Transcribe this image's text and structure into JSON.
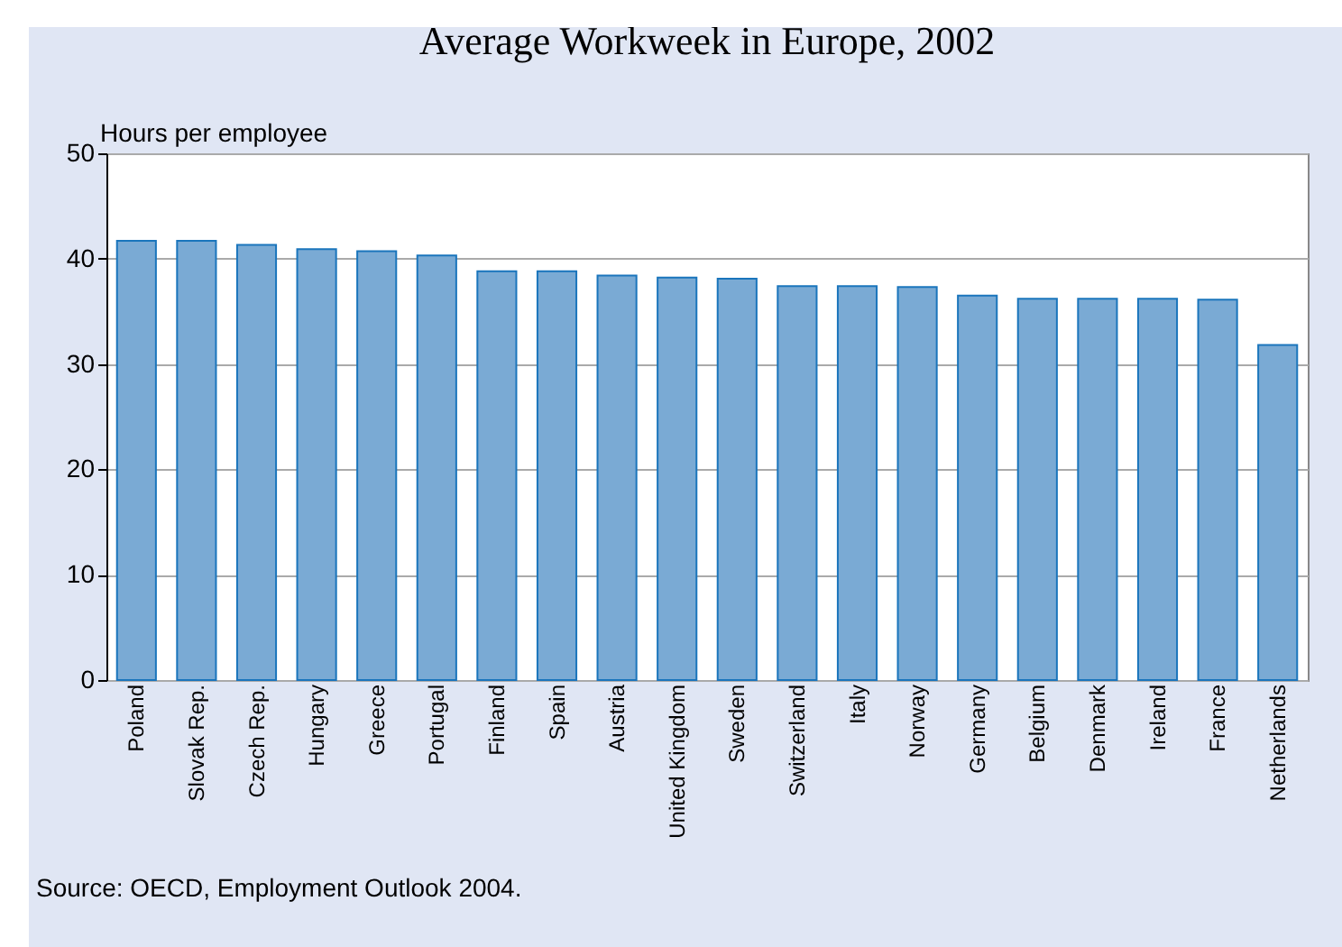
{
  "chart_data": {
    "type": "bar",
    "title": "Average Workweek in Europe, 2002",
    "ylabel": "Hours per employee",
    "categories": [
      "Poland",
      "Slovak Rep.",
      "Czech Rep.",
      "Hungary",
      "Greece",
      "Portugal",
      "Finland",
      "Spain",
      "Austria",
      "United Kingdom",
      "Sweden",
      "Switzerland",
      "Italy",
      "Norway",
      "Germany",
      "Belgium",
      "Denmark",
      "Ireland",
      "France",
      "Netherlands"
    ],
    "values": [
      41.7,
      41.7,
      41.3,
      40.9,
      40.7,
      40.3,
      38.8,
      38.8,
      38.4,
      38.2,
      38.1,
      37.4,
      37.4,
      37.3,
      36.5,
      36.2,
      36.2,
      36.2,
      36.1,
      31.8
    ],
    "color": "#7aaad4",
    "ylim": [
      0,
      50
    ],
    "yticks": [
      0,
      10,
      20,
      30,
      40,
      50
    ],
    "grid": "y",
    "annotations": [
      "Source: OECD, Employment Outlook 2004."
    ]
  }
}
